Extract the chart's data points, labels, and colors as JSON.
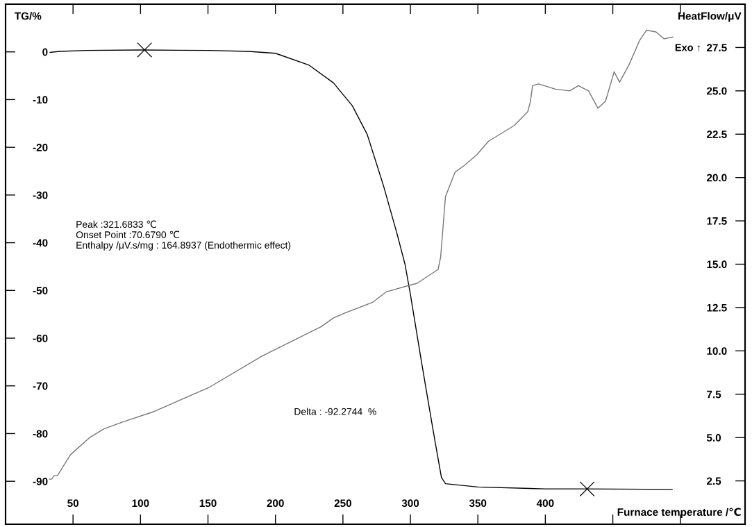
{
  "chart_data": {
    "type": "line",
    "xlabel": "Furnace temperature /℃",
    "ylabel": "TG/%",
    "y2label": "HeatFlow/μV",
    "xlim": [
      0,
      548
    ],
    "xticks": [
      50,
      100,
      150,
      200,
      250,
      300,
      350,
      400,
      {
        "value": 450,
        "label": null
      },
      {
        "value": 500,
        "label": null
      }
    ],
    "ylim": [
      -99,
      10
    ],
    "yticks": [
      0,
      -10,
      -20,
      -30,
      -40,
      -50,
      -60,
      -70,
      -80,
      -90
    ],
    "y2lim": [
      0,
      30
    ],
    "y2ticks": [
      {
        "value": 2.5,
        "label": "2.5"
      },
      {
        "value": 5,
        "label": "5.0"
      },
      {
        "value": 7.5,
        "label": "7.5"
      },
      {
        "value": 10,
        "label": "10.0"
      },
      {
        "value": 12.5,
        "label": "12.5"
      },
      {
        "value": 15,
        "label": "15.0"
      },
      {
        "value": 17.5,
        "label": "17.5"
      },
      {
        "value": 20,
        "label": "20.0"
      },
      {
        "value": 22.5,
        "label": "22.5"
      },
      {
        "value": 25,
        "label": "25.0"
      },
      {
        "value": 27.5,
        "label": "27.5"
      }
    ],
    "grid": false,
    "legend": false,
    "marker": "none",
    "line_style": "solid",
    "series": [
      {
        "color": "#000000",
        "x": [
          33,
          40,
          60,
          100,
          150,
          180,
          200,
          225,
          243,
          257,
          268,
          280,
          290,
          296,
          300,
          308,
          317,
          323,
          326,
          350,
          400,
          431,
          494
        ],
        "values": [
          -0.1,
          0.1,
          0.3,
          0.4,
          0.3,
          0.1,
          -0.3,
          -2.8,
          -6.5,
          -11.3,
          -17.3,
          -28,
          -38,
          -44.5,
          -50.8,
          -64.6,
          -79.6,
          -89.2,
          -90.5,
          -91.2,
          -91.6,
          -91.6,
          -91.7
        ]
      },
      {
        "type": "line",
        "axis": "y2",
        "color": "#777777",
        "x": [
          32.5,
          34,
          36,
          38.4,
          48,
          62.3,
          73,
          87,
          110,
          151,
          190,
          234,
          243,
          252,
          272,
          282,
          300,
          305,
          320.5,
          322.4,
          326,
          333,
          340,
          349,
          358,
          377,
          387,
          389,
          390.5,
          395,
          407.5,
          418,
          424.5,
          432,
          439,
          444.6,
          451,
          455,
          462,
          469.8,
          475,
          482,
          488,
          494.4
        ],
        "values": [
          2.6,
          2.6,
          2.8,
          2.8,
          4.0,
          5.0,
          5.5,
          5.9,
          6.5,
          7.9,
          9.7,
          11.4,
          11.9,
          12.2,
          12.8,
          13.4,
          13.8,
          13.9,
          14.7,
          15.4,
          18.9,
          20.3,
          20.7,
          21.3,
          22.1,
          23.0,
          23.8,
          24.4,
          25.3,
          25.4,
          25.1,
          25.0,
          25.3,
          25.0,
          24.0,
          24.4,
          26.1,
          25.5,
          26.5,
          27.9,
          28.5,
          28.4,
          28.0,
          28.1
        ]
      },
      {
        "type": "scatter",
        "color": "#000000",
        "marker": "cross",
        "x": [
          103,
          431
        ],
        "values": [
          0.4,
          -91.6
        ]
      }
    ],
    "annotations": [
      "Peak :321.6833 ℃",
      "Onset Point :70.6790 ℃",
      "Enthalpy /μV.s/mg : 164.8937 (Endothermic effect)",
      "Delta : -92.2744  %",
      "Exo ↑"
    ]
  }
}
